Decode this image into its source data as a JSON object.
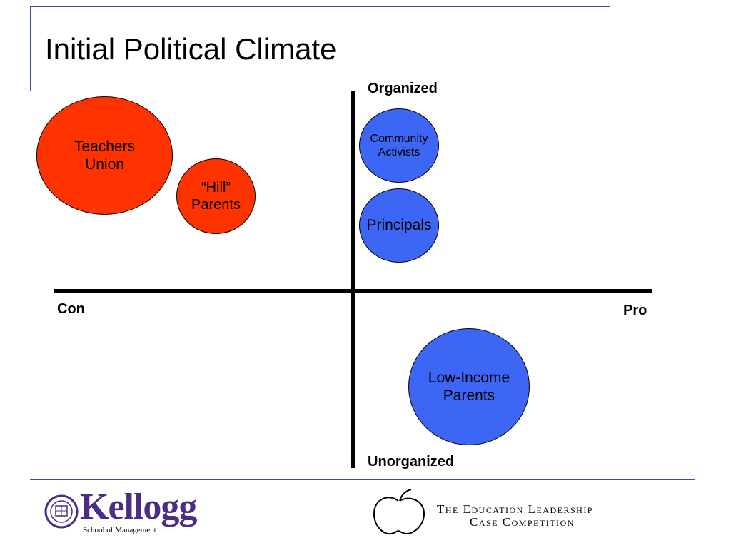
{
  "slide": {
    "title": "Initial Political Climate"
  },
  "axes": {
    "top_label": "Organized",
    "bottom_label": "Unorganized",
    "left_label": "Con",
    "right_label": "Pro"
  },
  "nodes": [
    {
      "id": "teachers-union",
      "label": "Teachers\nUnion",
      "color": "#ff3300",
      "group": "con"
    },
    {
      "id": "hill-parents",
      "label": "“Hill”\nParents",
      "color": "#ff3300",
      "group": "con"
    },
    {
      "id": "community-activists",
      "label": "Community\nActivists",
      "color": "#3d66f5",
      "group": "pro"
    },
    {
      "id": "principals",
      "label": "Principals",
      "color": "#3d66f5",
      "group": "pro"
    },
    {
      "id": "low-income-parents",
      "label": "Low-Income\nParents",
      "color": "#3d66f5",
      "group": "pro"
    }
  ],
  "footer": {
    "kellogg_logo": {
      "name": "Kellogg",
      "subtitle": "School of Management",
      "seal_icon": "northwestern-seal-icon"
    },
    "competition_logo": {
      "line1": "The Education Leadership",
      "line2": "Case Competition",
      "icon": "apple-outline-icon"
    }
  }
}
